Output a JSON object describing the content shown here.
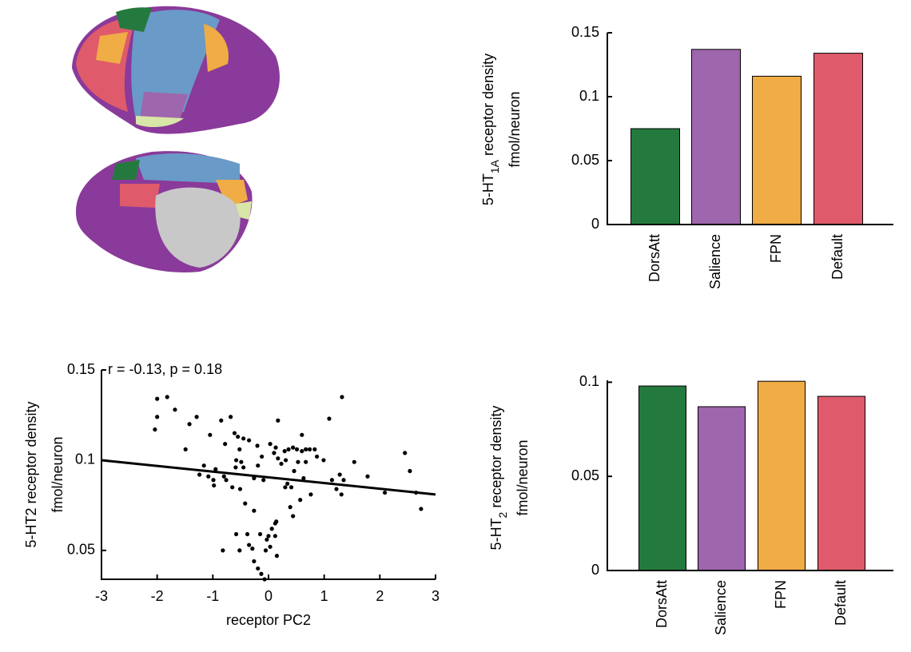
{
  "chart_data": [
    {
      "type": "bar",
      "ylabel": {
        "prefix": "5-HT",
        "subscript": "1A",
        "suffix": " receptor density"
      },
      "ylabel_unit": "fmol/neuron",
      "categories": [
        "DorsAtt",
        "Salience",
        "FPN",
        "Default"
      ],
      "values": [
        0.075,
        0.137,
        0.116,
        0.134
      ],
      "colors": [
        "#247a3e",
        "#9e66ad",
        "#f0ac45",
        "#df5b6b"
      ],
      "ylim": [
        0,
        0.15
      ],
      "yticks": [
        0,
        0.05,
        0.1,
        0.15
      ]
    },
    {
      "type": "scatter",
      "annotation": "r = -0.13, p = 0.18",
      "xlabel": "receptor PC2",
      "ylabel": "5-HT2 receptor density",
      "ylabel_unit": "fmol/neuron",
      "color": "#000000",
      "xlim": [
        -3,
        3
      ],
      "xticks": [
        -3,
        -2,
        -1,
        0,
        1,
        2,
        3
      ],
      "ylim": [
        0.034,
        0.15
      ],
      "yticks": [
        0.05,
        0.1,
        0.15
      ],
      "fit_line": {
        "x": [
          -3,
          3
        ],
        "y": [
          0.1,
          0.081
        ]
      },
      "x": [
        -2.0,
        -1.82,
        -1.68,
        -2.0,
        -2.04,
        -1.42,
        -1.29,
        -1.49,
        -1.05,
        -0.85,
        -0.68,
        -1.16,
        -1.24,
        -1.08,
        -0.95,
        -0.99,
        -0.98,
        -0.8,
        -0.76,
        -0.78,
        -0.61,
        -0.55,
        -0.45,
        -0.35,
        -0.52,
        -0.58,
        -0.49,
        -0.59,
        -0.45,
        -0.65,
        -0.51,
        -0.42,
        -0.26,
        -0.58,
        -0.38,
        -0.82,
        -0.52,
        -0.35,
        -0.29,
        -0.26,
        -0.19,
        -0.13,
        -0.07,
        -0.2,
        -0.12,
        -0.19,
        -0.26,
        -0.09,
        0.03,
        0.1,
        0.17,
        0.13,
        0.17,
        0.23,
        0.29,
        0.31,
        0.36,
        0.44,
        0.46,
        0.34,
        0.3,
        0.41,
        0.12,
        0.06,
        0.12,
        0.0,
        -0.03,
        0.03,
        -0.05,
        0.15,
        -0.15,
        0.53,
        0.51,
        0.6,
        0.67,
        0.74,
        0.83,
        0.87,
        0.6,
        0.67,
        0.63,
        0.76,
        0.57,
        0.39,
        0.44,
        0.14,
        0.99,
        1.09,
        1.14,
        1.28,
        1.22,
        1.31,
        1.35,
        1.32,
        1.54,
        1.78,
        2.09,
        2.45,
        2.54,
        2.65,
        2.74
      ],
      "y": [
        0.134,
        0.135,
        0.128,
        0.124,
        0.117,
        0.12,
        0.124,
        0.106,
        0.114,
        0.122,
        0.124,
        0.097,
        0.092,
        0.091,
        0.095,
        0.089,
        0.086,
        0.091,
        0.089,
        0.109,
        0.115,
        0.113,
        0.112,
        0.111,
        0.106,
        0.1,
        0.099,
        0.096,
        0.096,
        0.085,
        0.084,
        0.076,
        0.072,
        0.059,
        0.059,
        0.05,
        0.05,
        0.053,
        0.051,
        0.044,
        0.04,
        0.037,
        0.034,
        0.108,
        0.102,
        0.097,
        0.09,
        0.089,
        0.109,
        0.104,
        0.122,
        0.107,
        0.101,
        0.098,
        0.105,
        0.1,
        0.106,
        0.107,
        0.094,
        0.087,
        0.085,
        0.085,
        0.065,
        0.062,
        0.058,
        0.058,
        0.056,
        0.052,
        0.05,
        0.047,
        0.059,
        0.099,
        0.106,
        0.105,
        0.106,
        0.106,
        0.106,
        0.102,
        0.114,
        0.099,
        0.09,
        0.081,
        0.078,
        0.074,
        0.069,
        0.066,
        0.1,
        0.123,
        0.089,
        0.092,
        0.084,
        0.081,
        0.089,
        0.135,
        0.099,
        0.091,
        0.082,
        0.104,
        0.094,
        0.082,
        0.073
      ]
    },
    {
      "type": "bar",
      "ylabel": {
        "prefix": "5-HT",
        "subscript": "2",
        "suffix": " receptor density"
      },
      "ylabel_unit": "fmol/neuron",
      "categories": [
        "DorsAtt",
        "Salience",
        "FPN",
        "Default"
      ],
      "values": [
        0.098,
        0.087,
        0.1005,
        0.0925
      ],
      "colors": [
        "#247a3e",
        "#9e66ad",
        "#f0ac45",
        "#df5b6b"
      ],
      "ylim": [
        0,
        0.101
      ],
      "yticks": [
        0,
        0.05,
        0.1
      ]
    }
  ]
}
